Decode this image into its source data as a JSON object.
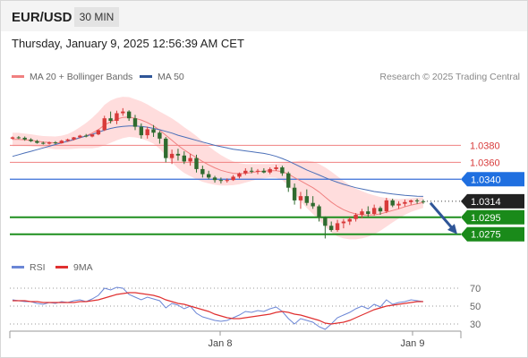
{
  "header": {
    "symbol": "EUR/USD",
    "timeframe": "30 MIN",
    "datetime": "Thursday, January 9, 2025 12:56:39 AM CET"
  },
  "legend": {
    "ma20_label": "MA 20 + Bollinger Bands",
    "ma50_label": "MA 50",
    "rsi_label": "RSI",
    "rsi_ma_label": "9MA",
    "credit": "Research © 2025 Trading Central"
  },
  "colors": {
    "ma20": "#f08080",
    "ma50": "#4a6fb8",
    "bollinger_fill": "#ffd7d7",
    "candle_up": "#d83a3a",
    "candle_down": "#2f6b2f",
    "resistance": "#f08080",
    "pivot": "#3a6fd8",
    "support": "#1e8f1e",
    "rsi": "#6b86d6",
    "rsi_ma": "#e03030"
  },
  "chart_data": {
    "type": "candlestick",
    "price_axis": {
      "ymin": 1.0262,
      "ymax": 1.0427
    },
    "x_ticks": [
      "Jan 8",
      "Jan 9"
    ],
    "current_price": {
      "label": "1.0314",
      "value": 1.0314
    },
    "levels": [
      {
        "label": "1.0380",
        "value": 1.038,
        "kind": "resistance"
      },
      {
        "label": "1.0360",
        "value": 1.036,
        "kind": "resistance"
      },
      {
        "label": "1.0340",
        "value": 1.034,
        "kind": "pivot"
      },
      {
        "label": "1.0295",
        "value": 1.0295,
        "kind": "support"
      },
      {
        "label": "1.0275",
        "value": 1.0275,
        "kind": "support"
      }
    ],
    "forecast_arrow": {
      "from": 1.0312,
      "to": 1.0275
    },
    "candles": [
      [
        1.0388,
        1.03905,
        1.0387,
        1.03895
      ],
      [
        1.03895,
        1.0391,
        1.03875,
        1.0389
      ],
      [
        1.0389,
        1.03905,
        1.03855,
        1.0387
      ],
      [
        1.0387,
        1.03885,
        1.0384,
        1.0385
      ],
      [
        1.0385,
        1.03865,
        1.0382,
        1.0383
      ],
      [
        1.0383,
        1.03845,
        1.0381,
        1.0382
      ],
      [
        1.0382,
        1.03845,
        1.0381,
        1.03835
      ],
      [
        1.03835,
        1.0385,
        1.03815,
        1.03825
      ],
      [
        1.03825,
        1.03865,
        1.0382,
        1.03855
      ],
      [
        1.03855,
        1.0388,
        1.03845,
        1.0387
      ],
      [
        1.0387,
        1.039,
        1.0386,
        1.03895
      ],
      [
        1.03895,
        1.03925,
        1.03885,
        1.03915
      ],
      [
        1.03915,
        1.03935,
        1.03895,
        1.03905
      ],
      [
        1.03905,
        1.03935,
        1.03895,
        1.0393
      ],
      [
        1.0393,
        1.0399,
        1.0392,
        1.0398
      ],
      [
        1.0398,
        1.0415,
        1.0397,
        1.0412
      ],
      [
        1.0412,
        1.042,
        1.0406,
        1.0409
      ],
      [
        1.0409,
        1.0421,
        1.0405,
        1.0418
      ],
      [
        1.0418,
        1.0424,
        1.0415,
        1.042
      ],
      [
        1.042,
        1.04215,
        1.0409,
        1.0412
      ],
      [
        1.0412,
        1.0416,
        1.0398,
        1.0402
      ],
      [
        1.0402,
        1.0406,
        1.0388,
        1.0392
      ],
      [
        1.0392,
        1.0402,
        1.0388,
        1.0399
      ],
      [
        1.0399,
        1.0404,
        1.039,
        1.0395
      ],
      [
        1.0395,
        1.0397,
        1.0382,
        1.0388
      ],
      [
        1.0388,
        1.039,
        1.036,
        1.0365
      ],
      [
        1.0365,
        1.0375,
        1.0358,
        1.037
      ],
      [
        1.037,
        1.0376,
        1.0362,
        1.0368
      ],
      [
        1.0368,
        1.0373,
        1.0358,
        1.0361
      ],
      [
        1.0361,
        1.037,
        1.0356,
        1.0365
      ],
      [
        1.0365,
        1.0369,
        1.0348,
        1.0352
      ],
      [
        1.0352,
        1.0356,
        1.0342,
        1.0346
      ],
      [
        1.0346,
        1.035,
        1.034,
        1.0342
      ],
      [
        1.0342,
        1.0344,
        1.0336,
        1.0339
      ],
      [
        1.0339,
        1.0342,
        1.0335,
        1.0338
      ],
      [
        1.0338,
        1.0341,
        1.0336,
        1.0339
      ],
      [
        1.0339,
        1.0345,
        1.0338,
        1.0343
      ],
      [
        1.0343,
        1.0348,
        1.0341,
        1.0347
      ],
      [
        1.0347,
        1.0353,
        1.0345,
        1.035
      ],
      [
        1.035,
        1.0354,
        1.0347,
        1.0349
      ],
      [
        1.0349,
        1.0352,
        1.0346,
        1.035
      ],
      [
        1.035,
        1.0353,
        1.0347,
        1.0348
      ],
      [
        1.0348,
        1.0354,
        1.0346,
        1.0352
      ],
      [
        1.0352,
        1.0357,
        1.035,
        1.0354
      ],
      [
        1.0354,
        1.0356,
        1.0344,
        1.0347
      ],
      [
        1.0347,
        1.0349,
        1.0325,
        1.033
      ],
      [
        1.033,
        1.0335,
        1.031,
        1.0315
      ],
      [
        1.0315,
        1.0325,
        1.0305,
        1.032
      ],
      [
        1.032,
        1.0328,
        1.0309,
        1.0312
      ],
      [
        1.0312,
        1.032,
        1.0305,
        1.0308
      ],
      [
        1.0308,
        1.031,
        1.029,
        1.0295
      ],
      [
        1.0295,
        1.0296,
        1.027,
        1.0285
      ],
      [
        1.0285,
        1.029,
        1.0278,
        1.028
      ],
      [
        1.028,
        1.0292,
        1.0278,
        1.0288
      ],
      [
        1.0288,
        1.0293,
        1.0282,
        1.029
      ],
      [
        1.029,
        1.0295,
        1.0286,
        1.0293
      ],
      [
        1.0293,
        1.03,
        1.029,
        1.0298
      ],
      [
        1.0298,
        1.0305,
        1.0294,
        1.0302
      ],
      [
        1.0302,
        1.0308,
        1.0295,
        1.0299
      ],
      [
        1.0299,
        1.031,
        1.0297,
        1.0306
      ],
      [
        1.0306,
        1.0308,
        1.0298,
        1.0302
      ],
      [
        1.0302,
        1.0318,
        1.03,
        1.0315
      ],
      [
        1.0315,
        1.0317,
        1.0307,
        1.0309
      ],
      [
        1.0309,
        1.0314,
        1.0305,
        1.0311
      ],
      [
        1.0311,
        1.0316,
        1.0308,
        1.0313
      ],
      [
        1.0313,
        1.0316,
        1.031,
        1.0315
      ],
      [
        1.0315,
        1.0317,
        1.0311,
        1.0314
      ],
      [
        1.0314,
        1.0316,
        1.0311,
        1.0313
      ]
    ],
    "ma20": [
      1.0387,
      1.0387,
      1.03865,
      1.0386,
      1.0385,
      1.0384,
      1.03835,
      1.0383,
      1.03835,
      1.03845,
      1.03865,
      1.0389,
      1.03915,
      1.03945,
      1.03985,
      1.0404,
      1.0408,
      1.0411,
      1.0413,
      1.04135,
      1.0412,
      1.041,
      1.0407,
      1.0403,
      1.0398,
      1.0392,
      1.0386,
      1.038,
      1.03745,
      1.037,
      1.03655,
      1.0361,
      1.0357,
      1.03535,
      1.03505,
      1.03485,
      1.0347,
      1.03465,
      1.0347,
      1.0348,
      1.0349,
      1.03495,
      1.035,
      1.035,
      1.0349,
      1.0346,
      1.0342,
      1.0338,
      1.0334,
      1.033,
      1.0325,
      1.0319,
      1.0313,
      1.0308,
      1.0304,
      1.0301,
      1.0299,
      1.0298,
      1.02975,
      1.0298,
      1.0299,
      1.0301,
      1.0303,
      1.0305,
      1.03075,
      1.03095,
      1.0311,
      1.03125
    ],
    "ma50": [
      1.0367,
      1.0369,
      1.0371,
      1.0373,
      1.0375,
      1.0377,
      1.0379,
      1.0381,
      1.0383,
      1.0385,
      1.0387,
      1.0389,
      1.0391,
      1.0393,
      1.03955,
      1.0398,
      1.04,
      1.04015,
      1.04025,
      1.0403,
      1.0403,
      1.04025,
      1.04015,
      1.04,
      1.03985,
      1.03965,
      1.03945,
      1.0392,
      1.039,
      1.0388,
      1.0386,
      1.0384,
      1.0382,
      1.038,
      1.03785,
      1.0377,
      1.03755,
      1.03745,
      1.03735,
      1.03725,
      1.03715,
      1.03705,
      1.0369,
      1.0367,
      1.03645,
      1.03615,
      1.0358,
      1.03545,
      1.0351,
      1.0348,
      1.0345,
      1.0342,
      1.0339,
      1.03365,
      1.0334,
      1.0332,
      1.033,
      1.03285,
      1.0327,
      1.03255,
      1.03245,
      1.03235,
      1.03225,
      1.03218,
      1.0321,
      1.03205,
      1.032,
      1.03198
    ],
    "bollinger_width": [
      0.0008,
      0.00078,
      0.00075,
      0.00072,
      0.0007,
      0.0007,
      0.00072,
      0.00075,
      0.0008,
      0.0009,
      0.00105,
      0.00125,
      0.0015,
      0.0018,
      0.0021,
      0.0024,
      0.0025,
      0.0025,
      0.00245,
      0.00235,
      0.00225,
      0.0022,
      0.00215,
      0.0021,
      0.0022,
      0.0024,
      0.0026,
      0.0027,
      0.0027,
      0.00265,
      0.00255,
      0.0024,
      0.0022,
      0.002,
      0.0018,
      0.0016,
      0.0014,
      0.00125,
      0.0011,
      0.001,
      0.0009,
      0.00085,
      0.0008,
      0.00085,
      0.001,
      0.0014,
      0.0019,
      0.0024,
      0.0028,
      0.0031,
      0.0033,
      0.0035,
      0.0036,
      0.00355,
      0.0034,
      0.0032,
      0.003,
      0.0028,
      0.00255,
      0.0023,
      0.002,
      0.0017,
      0.0014,
      0.00115,
      0.00095,
      0.0008,
      0.00072,
      0.00065
    ],
    "rsi_axis": {
      "ymin": 20,
      "ymax": 80,
      "ticks": [
        "70",
        "50",
        "30"
      ]
    },
    "rsi": [
      57,
      56,
      55,
      55,
      53,
      52,
      54,
      53,
      55,
      54,
      56,
      57,
      55,
      58,
      62,
      70,
      68,
      71,
      70,
      63,
      60,
      57,
      60,
      58,
      56,
      48,
      53,
      51,
      47,
      50,
      42,
      38,
      36,
      34,
      33,
      34,
      37,
      40,
      44,
      43,
      45,
      44,
      47,
      49,
      44,
      36,
      30,
      36,
      34,
      32,
      27,
      24,
      30,
      37,
      40,
      43,
      47,
      50,
      47,
      52,
      49,
      57,
      52,
      54,
      55,
      57,
      56,
      55
    ],
    "rsi_ma": [
      56,
      56,
      56,
      55,
      55,
      54,
      54,
      54,
      54,
      54,
      54,
      55,
      55,
      56,
      57,
      59,
      61,
      63,
      64,
      65,
      65,
      64,
      63,
      62,
      60,
      57,
      55,
      53,
      52,
      50,
      48,
      46,
      44,
      41,
      39,
      37,
      36,
      36,
      37,
      38,
      39,
      40,
      41,
      43,
      44,
      43,
      41,
      40,
      38,
      36,
      34,
      31,
      30,
      31,
      32,
      34,
      37,
      40,
      43,
      46,
      48,
      50,
      51,
      52,
      53,
      54,
      55,
      55
    ]
  }
}
